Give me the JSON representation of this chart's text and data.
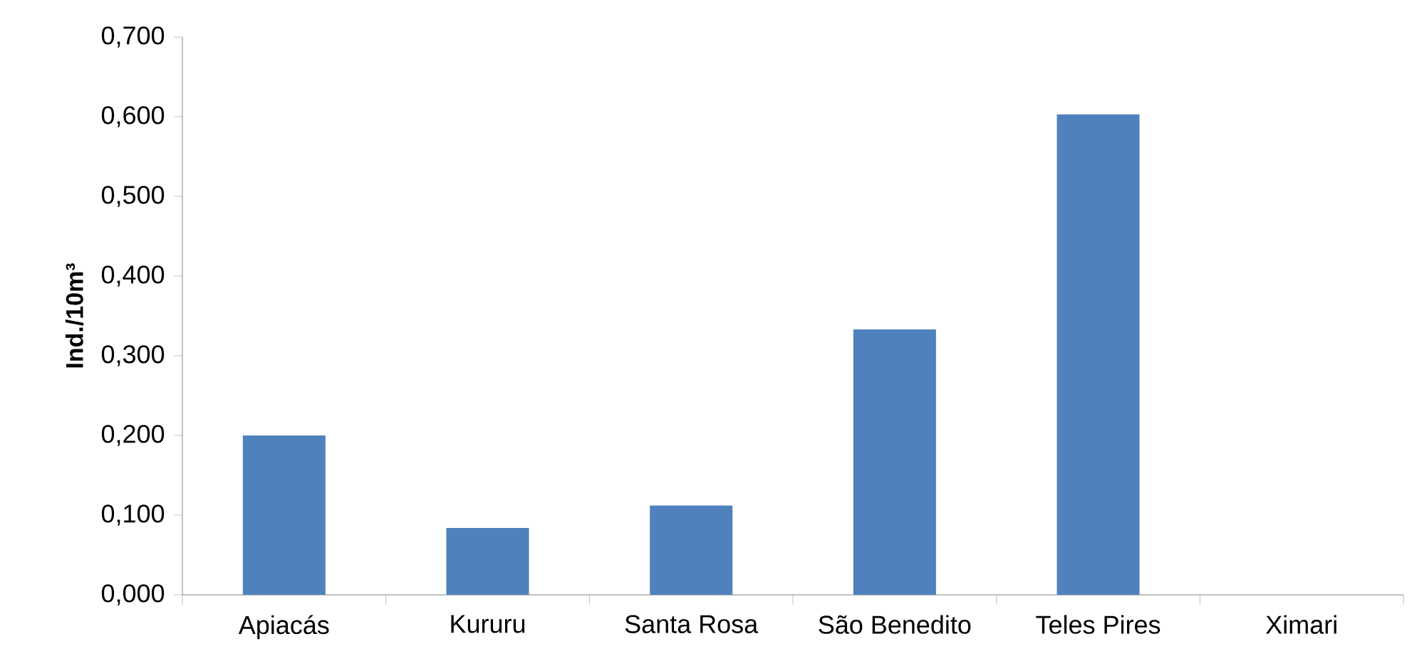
{
  "chart_data": {
    "type": "bar",
    "ylabel": "Ind./10m³",
    "categories": [
      "Apiacás",
      "Kururu",
      "Santa Rosa",
      "São Benedito",
      "Teles Pires",
      "Ximari"
    ],
    "values": [
      0.2,
      0.084,
      0.112,
      0.333,
      0.603,
      0
    ],
    "color": "#4f81bd",
    "ylim": [
      0,
      0.7
    ],
    "yticks": [
      {
        "value": 0,
        "label": "0,000"
      },
      {
        "value": 0.1,
        "label": "0,100"
      },
      {
        "value": 0.2,
        "label": "0,200"
      },
      {
        "value": 0.3,
        "label": "0,300"
      },
      {
        "value": 0.4,
        "label": "0,400"
      },
      {
        "value": 0.5,
        "label": "0,500"
      },
      {
        "value": 0.6,
        "label": "0,600"
      },
      {
        "value": 0.7,
        "label": "0,700"
      }
    ]
  }
}
